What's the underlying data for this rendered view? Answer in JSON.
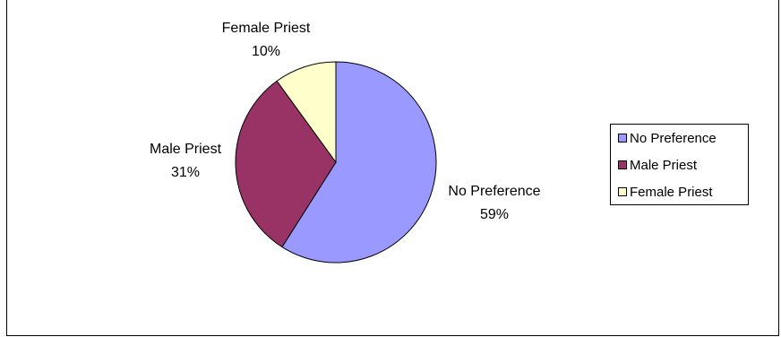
{
  "chart_data": {
    "type": "pie",
    "slices": [
      {
        "label": "No Preference",
        "value": 59,
        "percent_label": "59%",
        "color": "#9999ff"
      },
      {
        "label": "Male Priest",
        "value": 31,
        "percent_label": "31%",
        "color": "#993366"
      },
      {
        "label": "Female Priest",
        "value": 10,
        "percent_label": "10%",
        "color": "#ffffcc"
      }
    ],
    "legend": {
      "placement": "right",
      "entries": [
        "No Preference",
        "Male Priest",
        "Female Priest"
      ]
    }
  }
}
